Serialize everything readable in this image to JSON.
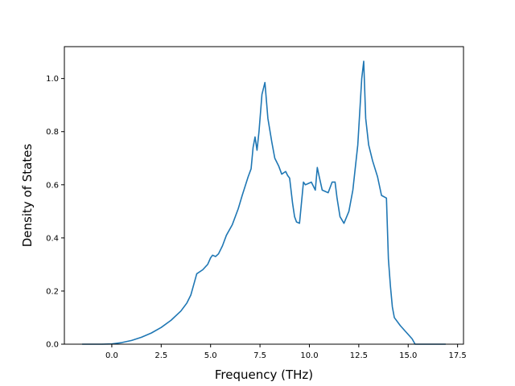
{
  "chart_data": {
    "type": "line",
    "title": "",
    "xlabel": "Frequency (THz)",
    "ylabel": "Density of States",
    "xlim": [
      -2.4,
      17.8
    ],
    "ylim": [
      0,
      1.12
    ],
    "xticks": [
      0.0,
      2.5,
      5.0,
      7.5,
      10.0,
      12.5,
      15.0,
      17.5
    ],
    "xtick_labels": [
      "0.0",
      "2.5",
      "5.0",
      "7.5",
      "10.0",
      "12.5",
      "15.0",
      "17.5"
    ],
    "yticks": [
      0.0,
      0.2,
      0.4,
      0.6,
      0.8,
      1.0
    ],
    "ytick_labels": [
      "0.0",
      "0.2",
      "0.4",
      "0.6",
      "0.8",
      "1.0"
    ],
    "grid": false,
    "series": [
      {
        "color": "#1f77b4",
        "x": [
          -1.5,
          -0.5,
          0.0,
          0.5,
          1.0,
          1.5,
          2.0,
          2.5,
          3.0,
          3.5,
          3.8,
          4.0,
          4.15,
          4.3,
          4.6,
          4.85,
          5.0,
          5.1,
          5.25,
          5.4,
          5.6,
          5.8,
          6.1,
          6.4,
          6.6,
          6.9,
          7.05,
          7.15,
          7.25,
          7.35,
          7.45,
          7.6,
          7.75,
          7.9,
          8.1,
          8.25,
          8.45,
          8.6,
          8.8,
          8.9,
          9.0,
          9.15,
          9.25,
          9.35,
          9.5,
          9.7,
          9.8,
          9.95,
          10.1,
          10.3,
          10.4,
          10.5,
          10.65,
          10.8,
          10.95,
          11.15,
          11.3,
          11.4,
          11.55,
          11.75,
          12.0,
          12.2,
          12.45,
          12.65,
          12.75,
          12.85,
          13.0,
          13.2,
          13.45,
          13.65,
          13.9,
          14.0,
          14.1,
          14.2,
          14.3,
          14.6,
          14.9,
          15.2,
          15.35,
          15.6,
          16.0,
          16.9
        ],
        "y": [
          0.0,
          0.0,
          0.001,
          0.006,
          0.014,
          0.026,
          0.042,
          0.063,
          0.09,
          0.125,
          0.155,
          0.185,
          0.225,
          0.265,
          0.28,
          0.3,
          0.325,
          0.335,
          0.33,
          0.34,
          0.37,
          0.41,
          0.45,
          0.51,
          0.56,
          0.63,
          0.66,
          0.74,
          0.78,
          0.73,
          0.8,
          0.94,
          0.985,
          0.85,
          0.76,
          0.7,
          0.67,
          0.64,
          0.65,
          0.635,
          0.625,
          0.53,
          0.48,
          0.46,
          0.455,
          0.61,
          0.6,
          0.605,
          0.61,
          0.58,
          0.665,
          0.63,
          0.58,
          0.575,
          0.57,
          0.61,
          0.61,
          0.55,
          0.48,
          0.455,
          0.5,
          0.58,
          0.75,
          1.0,
          1.065,
          0.85,
          0.75,
          0.69,
          0.63,
          0.56,
          0.55,
          0.32,
          0.22,
          0.14,
          0.1,
          0.07,
          0.045,
          0.02,
          0.0,
          0.0,
          0.0,
          0.0
        ]
      }
    ]
  }
}
